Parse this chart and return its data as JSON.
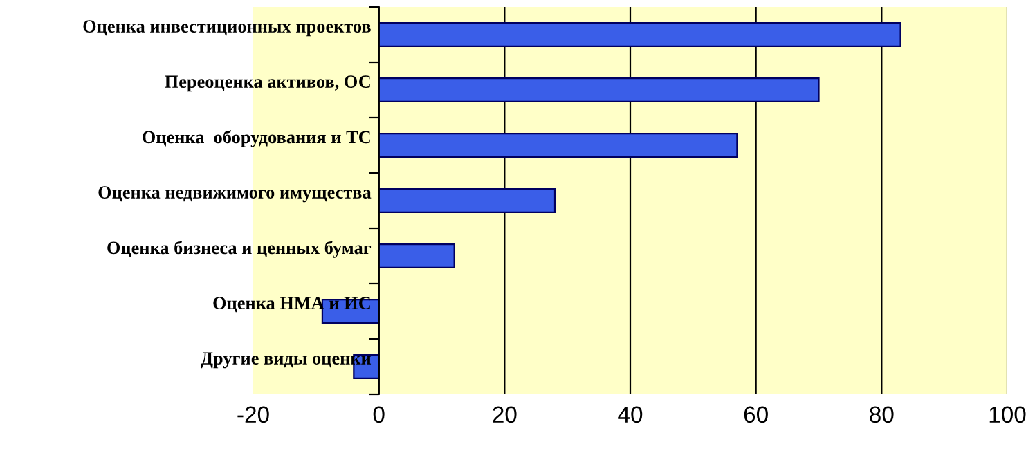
{
  "chart_data": {
    "type": "bar",
    "orientation": "horizontal",
    "categories": [
      "Оценка инвестиционных проектов",
      "Переоценка активов, ОС",
      "Оценка  оборудования и ТС",
      "Оценка недвижимого имущества",
      "Оценка бизнеса и ценных бумаг",
      "Оценка НМА и ИС",
      "Другие виды оценки"
    ],
    "values": [
      83,
      70,
      57,
      28,
      12,
      -9,
      -4
    ],
    "color": "#3a5ee8",
    "xlim": [
      -20,
      100
    ],
    "xticks": [
      -20,
      0,
      20,
      40,
      60,
      80,
      100
    ],
    "grid": "x"
  }
}
